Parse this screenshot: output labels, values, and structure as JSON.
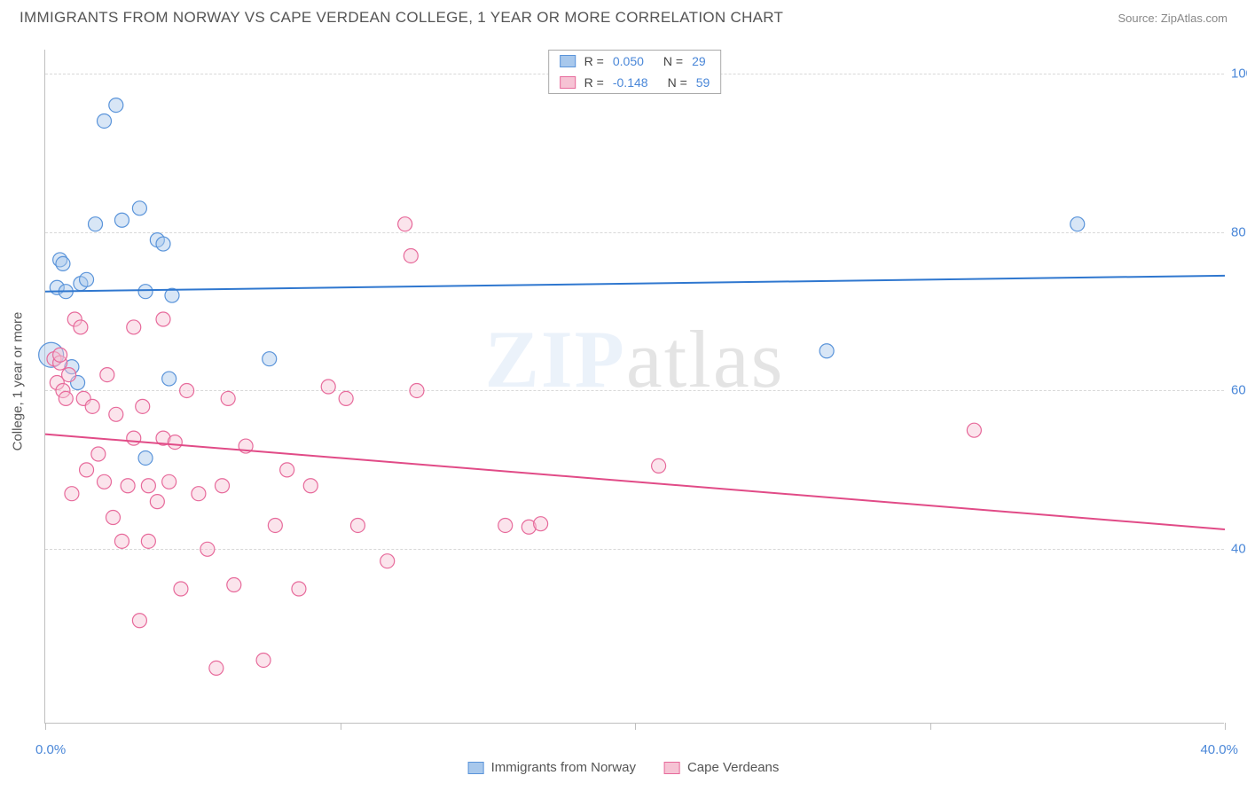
{
  "header": {
    "title": "IMMIGRANTS FROM NORWAY VS CAPE VERDEAN COLLEGE, 1 YEAR OR MORE CORRELATION CHART",
    "source": "Source: ZipAtlas.com"
  },
  "watermark": {
    "part1": "ZIP",
    "part2": "atlas"
  },
  "chart": {
    "type": "scatter",
    "y_axis_label": "College, 1 year or more",
    "x_range": [
      0,
      40
    ],
    "y_range": [
      18,
      103
    ],
    "y_gridlines": [
      40,
      60,
      80,
      100
    ],
    "y_tick_labels": [
      "40.0%",
      "60.0%",
      "80.0%",
      "100.0%"
    ],
    "x_ticks": [
      0,
      10,
      20,
      30,
      40
    ],
    "x_tick_labels": {
      "left": "0.0%",
      "right": "40.0%"
    },
    "background_color": "#ffffff",
    "grid_color": "#d8d8d8",
    "axis_color": "#bfbfbf",
    "tick_label_color": "#4a87d8",
    "marker_radius": 8,
    "marker_opacity": 0.45,
    "series": [
      {
        "name": "Immigrants from Norway",
        "color_fill": "#a8c8ec",
        "color_stroke": "#5a94da",
        "R": "0.050",
        "N": "29",
        "trend": {
          "y_at_x0": 72.5,
          "y_at_x40": 74.5,
          "color": "#2f77cf",
          "width": 2
        },
        "points": [
          [
            0.2,
            64.5,
            14
          ],
          [
            0.4,
            73
          ],
          [
            0.5,
            76.5
          ],
          [
            0.6,
            76
          ],
          [
            0.7,
            72.5
          ],
          [
            0.9,
            63
          ],
          [
            1.1,
            61
          ],
          [
            1.2,
            73.5
          ],
          [
            1.4,
            74
          ],
          [
            1.7,
            81
          ],
          [
            2.0,
            94
          ],
          [
            2.4,
            96
          ],
          [
            2.6,
            81.5
          ],
          [
            3.2,
            83
          ],
          [
            3.4,
            51.5
          ],
          [
            3.4,
            72.5
          ],
          [
            3.8,
            79
          ],
          [
            4.0,
            78.5
          ],
          [
            4.2,
            61.5
          ],
          [
            4.3,
            72
          ],
          [
            7.6,
            64
          ],
          [
            26.5,
            65
          ],
          [
            35.0,
            81
          ]
        ]
      },
      {
        "name": "Cape Verdeans",
        "color_fill": "#f6c3d4",
        "color_stroke": "#e76a9b",
        "R": "-0.148",
        "N": "59",
        "trend": {
          "y_at_x0": 54.5,
          "y_at_x40": 42.5,
          "color": "#e14b87",
          "width": 2
        },
        "points": [
          [
            0.3,
            64
          ],
          [
            0.4,
            61
          ],
          [
            0.5,
            63.5
          ],
          [
            0.5,
            64.5
          ],
          [
            0.6,
            60
          ],
          [
            0.7,
            59
          ],
          [
            0.8,
            62
          ],
          [
            0.9,
            47
          ],
          [
            1.0,
            69
          ],
          [
            1.2,
            68
          ],
          [
            1.3,
            59
          ],
          [
            1.4,
            50
          ],
          [
            1.6,
            58
          ],
          [
            1.8,
            52
          ],
          [
            2.0,
            48.5
          ],
          [
            2.1,
            62
          ],
          [
            2.3,
            44
          ],
          [
            2.4,
            57
          ],
          [
            2.6,
            41
          ],
          [
            2.8,
            48
          ],
          [
            3.0,
            68
          ],
          [
            3.0,
            54
          ],
          [
            3.2,
            31
          ],
          [
            3.3,
            58
          ],
          [
            3.5,
            48
          ],
          [
            3.5,
            41
          ],
          [
            3.8,
            46
          ],
          [
            4.0,
            69
          ],
          [
            4.0,
            54
          ],
          [
            4.2,
            48.5
          ],
          [
            4.4,
            53.5
          ],
          [
            4.6,
            35
          ],
          [
            4.8,
            60
          ],
          [
            5.2,
            47
          ],
          [
            5.5,
            40
          ],
          [
            5.8,
            25
          ],
          [
            6.0,
            48
          ],
          [
            6.2,
            59
          ],
          [
            6.4,
            35.5
          ],
          [
            6.8,
            53
          ],
          [
            7.4,
            26
          ],
          [
            7.8,
            43
          ],
          [
            8.2,
            50
          ],
          [
            8.6,
            35
          ],
          [
            9.0,
            48
          ],
          [
            9.6,
            60.5
          ],
          [
            10.2,
            59
          ],
          [
            10.6,
            43
          ],
          [
            11.6,
            38.5
          ],
          [
            12.2,
            81
          ],
          [
            12.4,
            77
          ],
          [
            12.6,
            60
          ],
          [
            15.6,
            43
          ],
          [
            16.4,
            42.8
          ],
          [
            16.8,
            43.2
          ],
          [
            20.8,
            50.5
          ],
          [
            31.5,
            55
          ]
        ]
      }
    ]
  },
  "legend_top": {
    "r_label": "R =",
    "n_label": "N ="
  }
}
